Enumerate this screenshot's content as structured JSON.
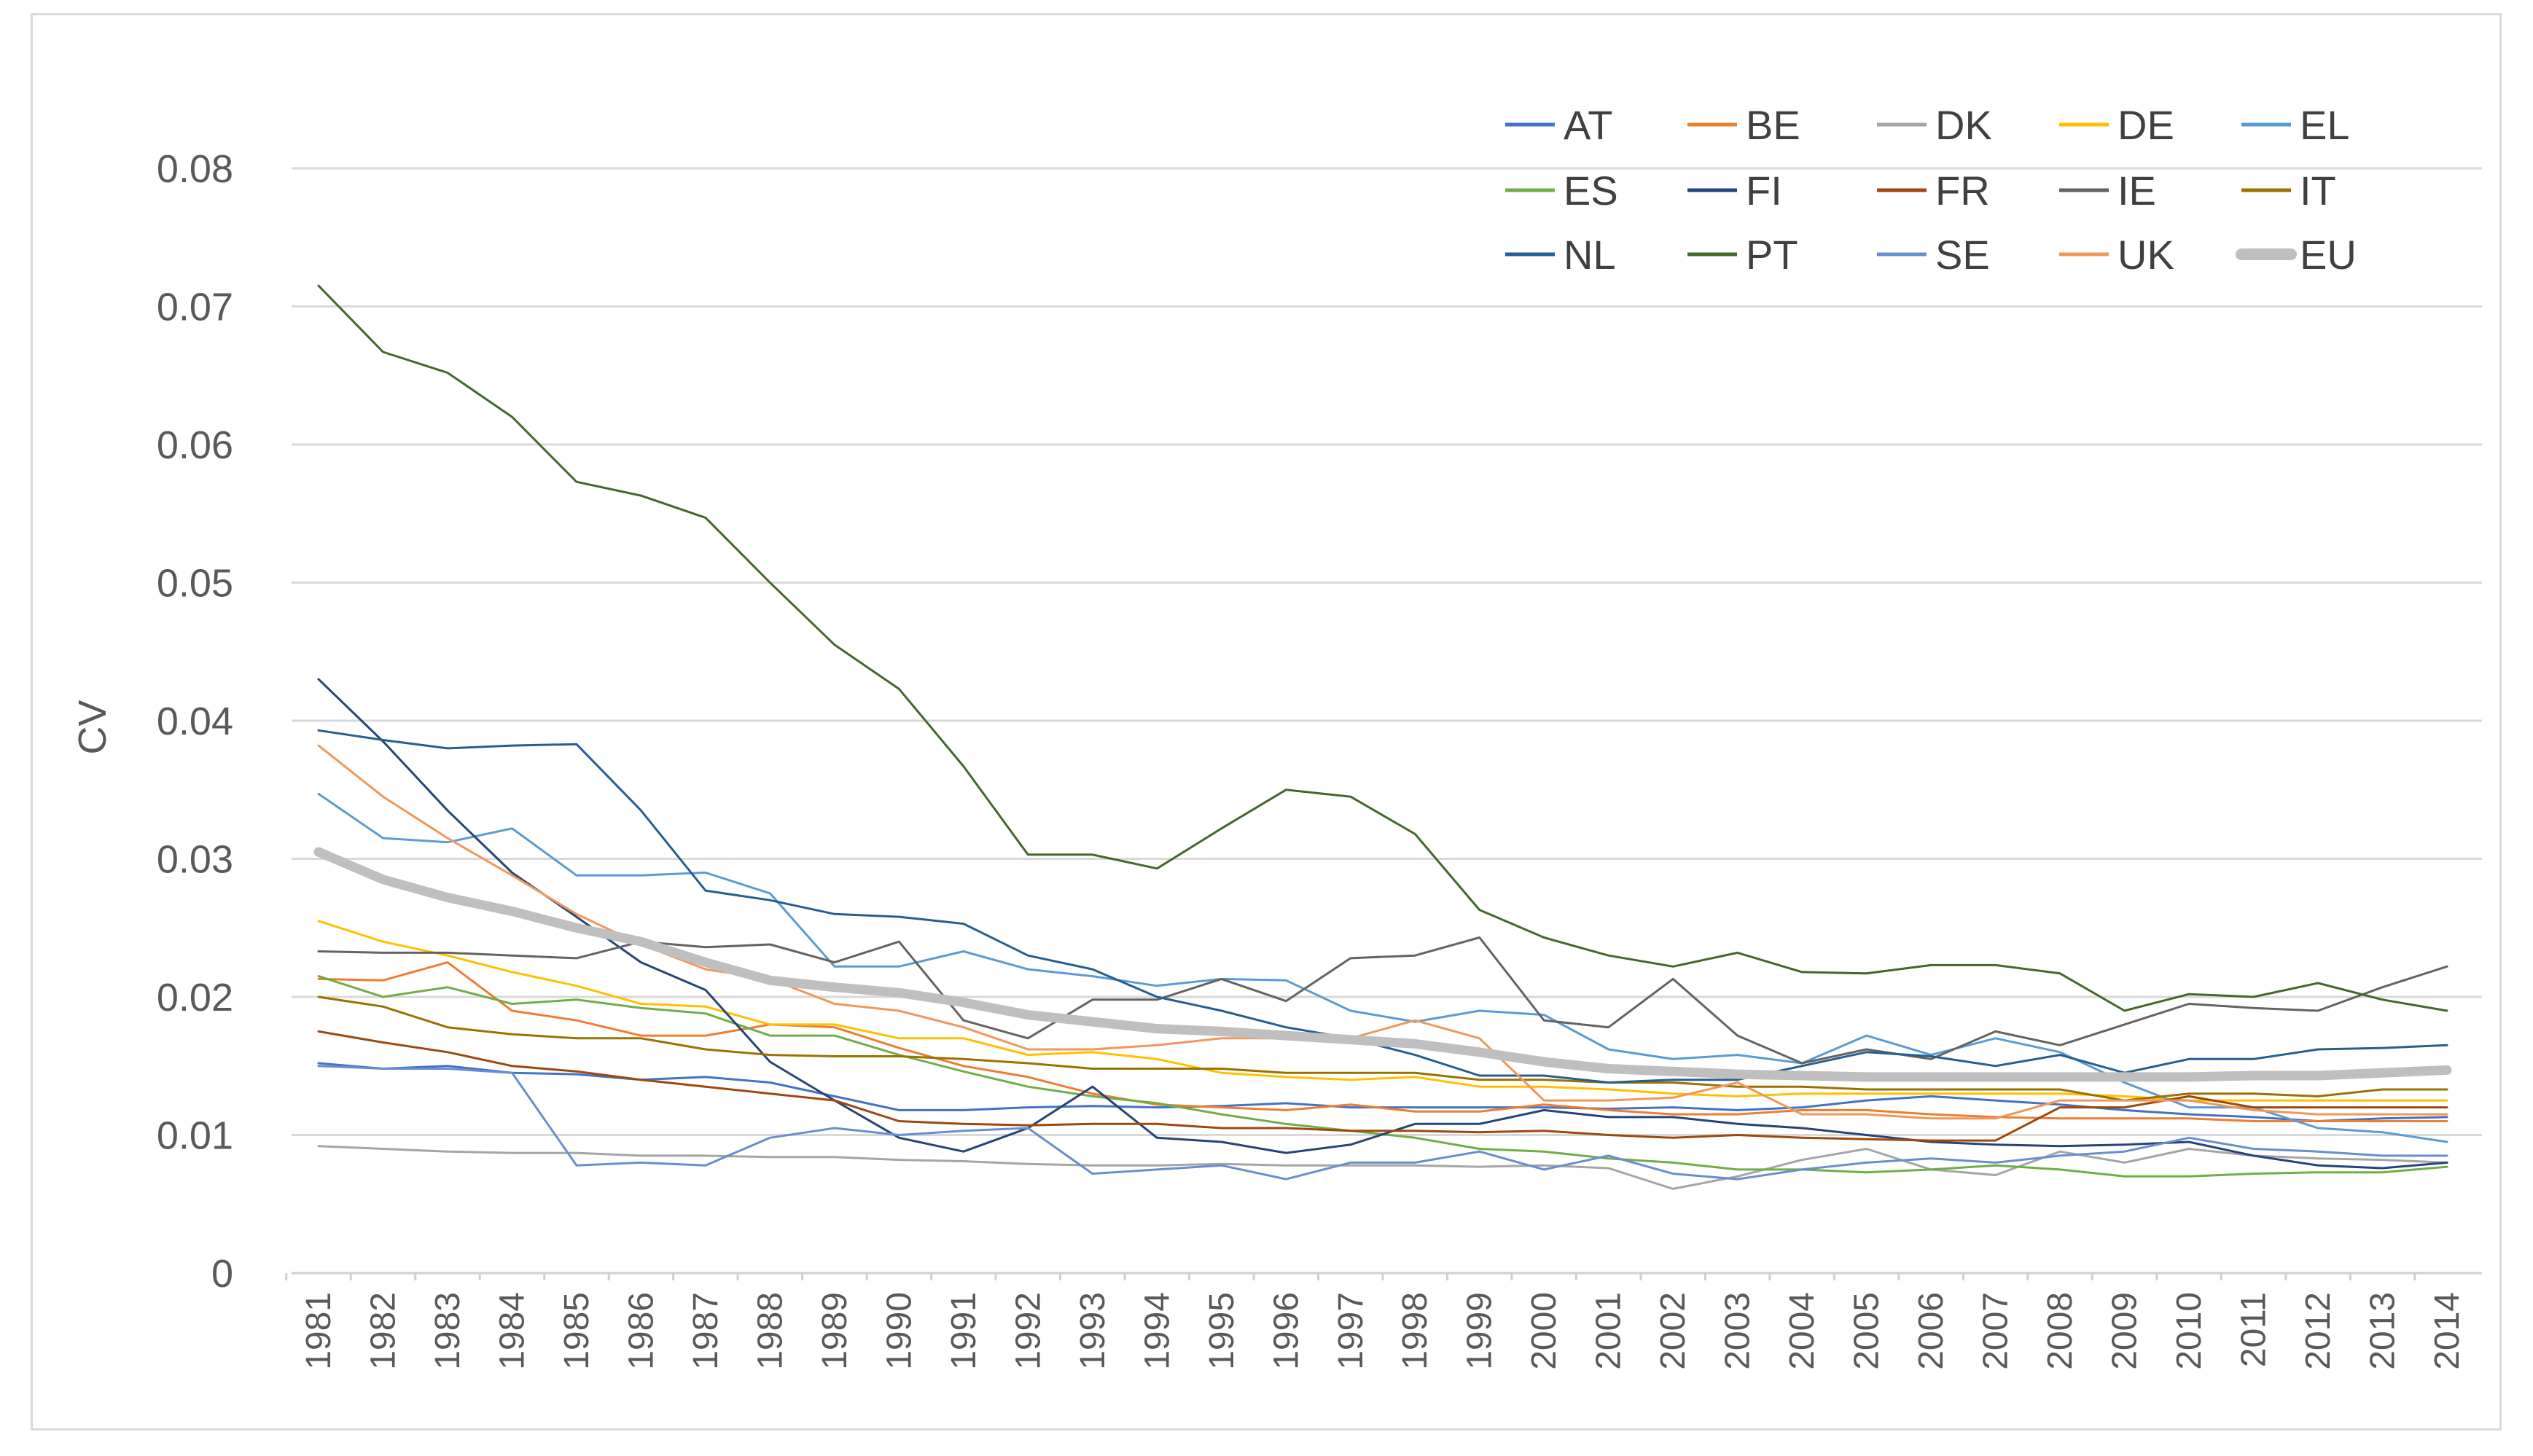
{
  "chart_data": {
    "type": "line",
    "title": "",
    "xlabel": "",
    "ylabel": "CV",
    "ylim": [
      0,
      0.08
    ],
    "y_ticks": [
      "0",
      "0.01",
      "0.02",
      "0.03",
      "0.04",
      "0.05",
      "0.06",
      "0.07",
      "0.08"
    ],
    "grid": true,
    "legend_position": "top-right",
    "categories": [
      "1981",
      "1982",
      "1983",
      "1984",
      "1985",
      "1986",
      "1987",
      "1988",
      "1989",
      "1990",
      "1991",
      "1992",
      "1993",
      "1994",
      "1995",
      "1996",
      "1997",
      "1998",
      "1999",
      "2000",
      "2001",
      "2002",
      "2003",
      "2004",
      "2005",
      "2006",
      "2007",
      "2008",
      "2009",
      "2010",
      "2011",
      "2012",
      "2013",
      "2014"
    ],
    "series": [
      {
        "name": "AT",
        "color": "#4472C4",
        "width": 3,
        "values": [
          0.0152,
          0.0148,
          0.015,
          0.0145,
          0.0144,
          0.014,
          0.0142,
          0.0138,
          0.0128,
          0.0118,
          0.0118,
          0.012,
          0.0121,
          0.012,
          0.0121,
          0.0123,
          0.012,
          0.012,
          0.012,
          0.012,
          0.0119,
          0.012,
          0.0118,
          0.012,
          0.0125,
          0.0128,
          0.0125,
          0.0122,
          0.0118,
          0.0115,
          0.0113,
          0.011,
          0.0112,
          0.0113
        ]
      },
      {
        "name": "BE",
        "color": "#ED7D31",
        "width": 3,
        "values": [
          0.0213,
          0.0212,
          0.0225,
          0.019,
          0.0183,
          0.0172,
          0.0172,
          0.018,
          0.0178,
          0.0163,
          0.015,
          0.0142,
          0.013,
          0.0122,
          0.012,
          0.0118,
          0.0122,
          0.0117,
          0.0117,
          0.0122,
          0.0118,
          0.0115,
          0.0115,
          0.0118,
          0.0118,
          0.0115,
          0.0113,
          0.0112,
          0.0112,
          0.0112,
          0.011,
          0.011,
          0.011,
          0.011
        ]
      },
      {
        "name": "DK",
        "color": "#A5A5A5",
        "width": 3,
        "values": [
          0.0092,
          0.009,
          0.0088,
          0.0087,
          0.0087,
          0.0085,
          0.0085,
          0.0084,
          0.0084,
          0.0082,
          0.0081,
          0.0079,
          0.0078,
          0.0078,
          0.0079,
          0.0078,
          0.0078,
          0.0078,
          0.0077,
          0.0078,
          0.0076,
          0.0061,
          0.007,
          0.0082,
          0.009,
          0.0075,
          0.0071,
          0.0088,
          0.008,
          0.009,
          0.0085,
          0.0083,
          0.0082,
          0.008
        ]
      },
      {
        "name": "DE",
        "color": "#FFC000",
        "width": 3,
        "values": [
          0.0255,
          0.024,
          0.023,
          0.0218,
          0.0208,
          0.0195,
          0.0193,
          0.018,
          0.018,
          0.017,
          0.017,
          0.0158,
          0.016,
          0.0155,
          0.0145,
          0.0142,
          0.014,
          0.0142,
          0.0135,
          0.0135,
          0.0133,
          0.013,
          0.0128,
          0.013,
          0.013,
          0.013,
          0.013,
          0.013,
          0.0128,
          0.0125,
          0.0125,
          0.0125,
          0.0125,
          0.0125
        ]
      },
      {
        "name": "EL",
        "color": "#5B9BD5",
        "width": 3,
        "values": [
          0.0347,
          0.0315,
          0.0312,
          0.0322,
          0.0288,
          0.0288,
          0.029,
          0.0275,
          0.0222,
          0.0222,
          0.0233,
          0.022,
          0.0215,
          0.0208,
          0.0213,
          0.0212,
          0.019,
          0.0182,
          0.019,
          0.0187,
          0.0162,
          0.0155,
          0.0158,
          0.0152,
          0.0172,
          0.0158,
          0.017,
          0.016,
          0.0138,
          0.012,
          0.012,
          0.0105,
          0.0102,
          0.0095
        ]
      },
      {
        "name": "ES",
        "color": "#70AD47",
        "width": 3,
        "values": [
          0.0215,
          0.02,
          0.0207,
          0.0195,
          0.0198,
          0.0192,
          0.0188,
          0.0172,
          0.0172,
          0.0158,
          0.0146,
          0.0135,
          0.0128,
          0.0123,
          0.0115,
          0.0108,
          0.0103,
          0.0098,
          0.009,
          0.0088,
          0.0083,
          0.008,
          0.0075,
          0.0075,
          0.0073,
          0.0075,
          0.0078,
          0.0075,
          0.007,
          0.007,
          0.0072,
          0.0073,
          0.0073,
          0.0077
        ]
      },
      {
        "name": "FI",
        "color": "#264478",
        "width": 3,
        "values": [
          0.043,
          0.0385,
          0.0335,
          0.029,
          0.0258,
          0.0225,
          0.0205,
          0.0153,
          0.0125,
          0.0098,
          0.0088,
          0.0105,
          0.0135,
          0.0098,
          0.0095,
          0.0087,
          0.0093,
          0.0108,
          0.0108,
          0.0118,
          0.0113,
          0.0113,
          0.0108,
          0.0105,
          0.01,
          0.0095,
          0.0093,
          0.0092,
          0.0093,
          0.0095,
          0.0085,
          0.0078,
          0.0076,
          0.008
        ]
      },
      {
        "name": "FR",
        "color": "#9E480E",
        "width": 3,
        "values": [
          0.0175,
          0.0167,
          0.016,
          0.015,
          0.0146,
          0.014,
          0.0135,
          0.013,
          0.0125,
          0.011,
          0.0108,
          0.0107,
          0.0108,
          0.0108,
          0.0105,
          0.0105,
          0.0103,
          0.0103,
          0.0102,
          0.0103,
          0.01,
          0.0098,
          0.01,
          0.0098,
          0.0097,
          0.0096,
          0.0096,
          0.012,
          0.012,
          0.0128,
          0.012,
          0.012,
          0.012,
          0.012
        ]
      },
      {
        "name": "IE",
        "color": "#636363",
        "width": 3,
        "values": [
          0.0233,
          0.0232,
          0.0232,
          0.023,
          0.0228,
          0.024,
          0.0236,
          0.0238,
          0.0225,
          0.024,
          0.0183,
          0.017,
          0.0198,
          0.0198,
          0.0213,
          0.0197,
          0.0228,
          0.023,
          0.0243,
          0.0183,
          0.0178,
          0.0213,
          0.0172,
          0.0152,
          0.0162,
          0.0155,
          0.0175,
          0.0165,
          0.018,
          0.0195,
          0.0192,
          0.019,
          0.0207,
          0.0222
        ]
      },
      {
        "name": "IT",
        "color": "#997300",
        "width": 3,
        "values": [
          0.02,
          0.0193,
          0.0178,
          0.0173,
          0.017,
          0.017,
          0.0162,
          0.0158,
          0.0157,
          0.0157,
          0.0155,
          0.0152,
          0.0148,
          0.0148,
          0.0148,
          0.0145,
          0.0145,
          0.0145,
          0.014,
          0.014,
          0.0138,
          0.0138,
          0.0135,
          0.0135,
          0.0133,
          0.0133,
          0.0133,
          0.0133,
          0.0125,
          0.013,
          0.013,
          0.0128,
          0.0133,
          0.0133
        ]
      },
      {
        "name": "NL",
        "color": "#255E91",
        "width": 3,
        "values": [
          0.0393,
          0.0386,
          0.038,
          0.0382,
          0.0383,
          0.0335,
          0.0277,
          0.027,
          0.026,
          0.0258,
          0.0253,
          0.023,
          0.022,
          0.02,
          0.019,
          0.0178,
          0.017,
          0.0158,
          0.0143,
          0.0143,
          0.0138,
          0.014,
          0.014,
          0.015,
          0.016,
          0.0157,
          0.015,
          0.0158,
          0.0145,
          0.0155,
          0.0155,
          0.0162,
          0.0163,
          0.0165
        ]
      },
      {
        "name": "PT",
        "color": "#43682B",
        "width": 3,
        "values": [
          0.0715,
          0.0667,
          0.0652,
          0.062,
          0.0573,
          0.0563,
          0.0547,
          0.05,
          0.0455,
          0.0423,
          0.0367,
          0.0303,
          0.0303,
          0.0293,
          0.0322,
          0.035,
          0.0345,
          0.0318,
          0.0263,
          0.0243,
          0.023,
          0.0222,
          0.0232,
          0.0218,
          0.0217,
          0.0223,
          0.0223,
          0.0217,
          0.019,
          0.0202,
          0.02,
          0.021,
          0.0198,
          0.019
        ]
      },
      {
        "name": "SE",
        "color": "#698ED0",
        "width": 3,
        "values": [
          0.015,
          0.0148,
          0.0148,
          0.0145,
          0.0078,
          0.008,
          0.0078,
          0.0098,
          0.0105,
          0.01,
          0.0103,
          0.0105,
          0.0072,
          0.0075,
          0.0078,
          0.0068,
          0.008,
          0.008,
          0.0088,
          0.0075,
          0.0085,
          0.0072,
          0.0068,
          0.0075,
          0.008,
          0.0083,
          0.008,
          0.0085,
          0.0088,
          0.0098,
          0.009,
          0.0088,
          0.0085,
          0.0085
        ]
      },
      {
        "name": "UK",
        "color": "#F1975A",
        "width": 3,
        "values": [
          0.0382,
          0.0345,
          0.0315,
          0.0288,
          0.026,
          0.0238,
          0.022,
          0.0213,
          0.0195,
          0.019,
          0.0178,
          0.0162,
          0.0162,
          0.0165,
          0.017,
          0.017,
          0.017,
          0.0183,
          0.017,
          0.0125,
          0.0125,
          0.0127,
          0.0138,
          0.0115,
          0.0115,
          0.0112,
          0.0112,
          0.0125,
          0.0125,
          0.0125,
          0.0118,
          0.0115,
          0.0115,
          0.0115
        ]
      },
      {
        "name": "EU",
        "color": "#BFBFBF",
        "width": 13,
        "values": [
          0.0305,
          0.0285,
          0.0272,
          0.0262,
          0.025,
          0.024,
          0.0225,
          0.0212,
          0.0207,
          0.0203,
          0.0196,
          0.0187,
          0.0182,
          0.0177,
          0.0175,
          0.0172,
          0.0169,
          0.0166,
          0.016,
          0.0153,
          0.0148,
          0.0146,
          0.0144,
          0.0143,
          0.0142,
          0.0142,
          0.0142,
          0.0142,
          0.0142,
          0.0142,
          0.0143,
          0.0143,
          0.0145,
          0.0147
        ]
      }
    ]
  }
}
